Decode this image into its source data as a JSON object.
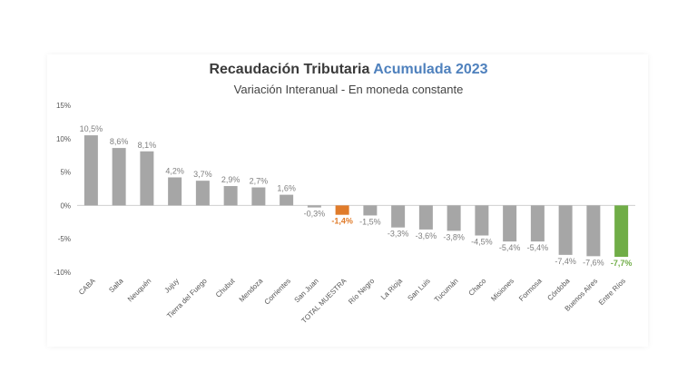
{
  "chart_data": {
    "type": "bar",
    "title_main": "Recaudación Tributaria",
    "title_accent": "Acumulada 2023",
    "subtitle": "Variación Interanual - En moneda constante",
    "categories": [
      "CABA",
      "Salta",
      "Neuquén",
      "Jujuy",
      "Tierra del Fuego",
      "Chubut",
      "Mendoza",
      "Corrientes",
      "San Juan",
      "TOTAL MUESTRA",
      "Río Negro",
      "La Rioja",
      "San Luis",
      "Tucumán",
      "Chaco",
      "Misiones",
      "Formosa",
      "Córdoba",
      "Buenos Aires",
      "Entre Ríos"
    ],
    "values": [
      10.5,
      8.6,
      8.1,
      4.2,
      3.7,
      2.9,
      2.7,
      1.6,
      -0.3,
      -1.4,
      -1.5,
      -3.3,
      -3.6,
      -3.8,
      -4.5,
      -5.4,
      -5.4,
      -7.4,
      -7.6,
      -7.7
    ],
    "value_labels": [
      "10,5%",
      "8,6%",
      "8,1%",
      "4,2%",
      "3,7%",
      "2,9%",
      "2,7%",
      "1,6%",
      "-0,3%",
      "-1,4%",
      "-1,5%",
      "-3,3%",
      "-3,6%",
      "-3,8%",
      "-4,5%",
      "-5,4%",
      "-5,4%",
      "-7,4%",
      "-7,6%",
      "-7,7%"
    ],
    "yticks": [
      15,
      10,
      5,
      0,
      -5,
      -10
    ],
    "ytick_labels": [
      "15%",
      "10%",
      "5%",
      "0%",
      "-5%",
      "-10%"
    ],
    "ylim": [
      -10,
      15
    ],
    "xlabel": "",
    "ylabel": "",
    "grid": false,
    "colors": {
      "default": "#a6a6a6",
      "total": "#e07b2a",
      "last": "#70ad47",
      "accent_title": "#4f81bd"
    },
    "highlights": {
      "TOTAL MUESTRA": "total",
      "Entre Ríos": "last"
    }
  }
}
